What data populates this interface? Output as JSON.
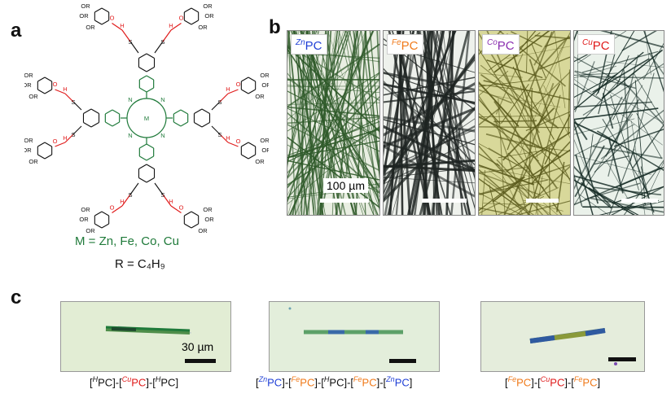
{
  "panels": {
    "a": "a",
    "b": "b",
    "c": "c"
  },
  "structure": {
    "metal_label": "M",
    "substituent": "OR",
    "amide_h": "H",
    "amide_n": "N",
    "sulfur": "S",
    "carbonyl_o": "O",
    "ring_n": "N",
    "legend_m": "M = Zn, Fe, Co, Cu",
    "legend_r": "R = C₄H₉"
  },
  "micrographs": [
    {
      "prefix": "Zn",
      "name": "PC",
      "color": "#1f3fd6",
      "bg": "#e9eee2",
      "fiber": "#2f5a2a",
      "scale_label": "100 µm"
    },
    {
      "prefix": "Fe",
      "name": "PC",
      "color": "#f07a1a",
      "bg": "#eef1ec",
      "fiber": "#1e2422",
      "scale_label": ""
    },
    {
      "prefix": "Co",
      "name": "PC",
      "color": "#8a2fb0",
      "bg": "#d8d89a",
      "fiber": "#5a5a1c",
      "scale_label": ""
    },
    {
      "prefix": "Cu",
      "name": "PC",
      "color": "#e01b1b",
      "bg": "#eaf1ea",
      "fiber": "#142a24",
      "scale_label": ""
    }
  ],
  "rods": [
    {
      "scale_label": "30 µm",
      "caption": [
        {
          "t": "[",
          "c": ""
        },
        {
          "sup": "H",
          "t": "PC",
          "c": ""
        },
        {
          "t": "]-[",
          "c": ""
        },
        {
          "sup": "Cu",
          "t": "PC",
          "c": "cu"
        },
        {
          "t": "]-[",
          "c": ""
        },
        {
          "sup": "H",
          "t": "PC",
          "c": ""
        },
        {
          "t": "]",
          "c": ""
        }
      ]
    },
    {
      "scale_label": "",
      "caption": [
        {
          "t": "[",
          "c": ""
        },
        {
          "sup": "Zn",
          "t": "PC",
          "c": "zn"
        },
        {
          "t": "]-[",
          "c": ""
        },
        {
          "sup": "Fe",
          "t": "PC",
          "c": "fe"
        },
        {
          "t": "]-[",
          "c": ""
        },
        {
          "sup": "H",
          "t": "PC",
          "c": ""
        },
        {
          "t": "]-[",
          "c": ""
        },
        {
          "sup": "Fe",
          "t": "PC",
          "c": "fe"
        },
        {
          "t": "]-[",
          "c": ""
        },
        {
          "sup": "Zn",
          "t": "PC",
          "c": "zn"
        },
        {
          "t": "]",
          "c": ""
        }
      ]
    },
    {
      "scale_label": "",
      "caption": [
        {
          "t": "[",
          "c": ""
        },
        {
          "sup": "Fe",
          "t": "PC",
          "c": "fe"
        },
        {
          "t": "]-[",
          "c": ""
        },
        {
          "sup": "Cu",
          "t": "PC",
          "c": "cu"
        },
        {
          "t": "]-[",
          "c": ""
        },
        {
          "sup": "Fe",
          "t": "PC",
          "c": "fe"
        },
        {
          "t": "]",
          "c": ""
        }
      ]
    }
  ]
}
